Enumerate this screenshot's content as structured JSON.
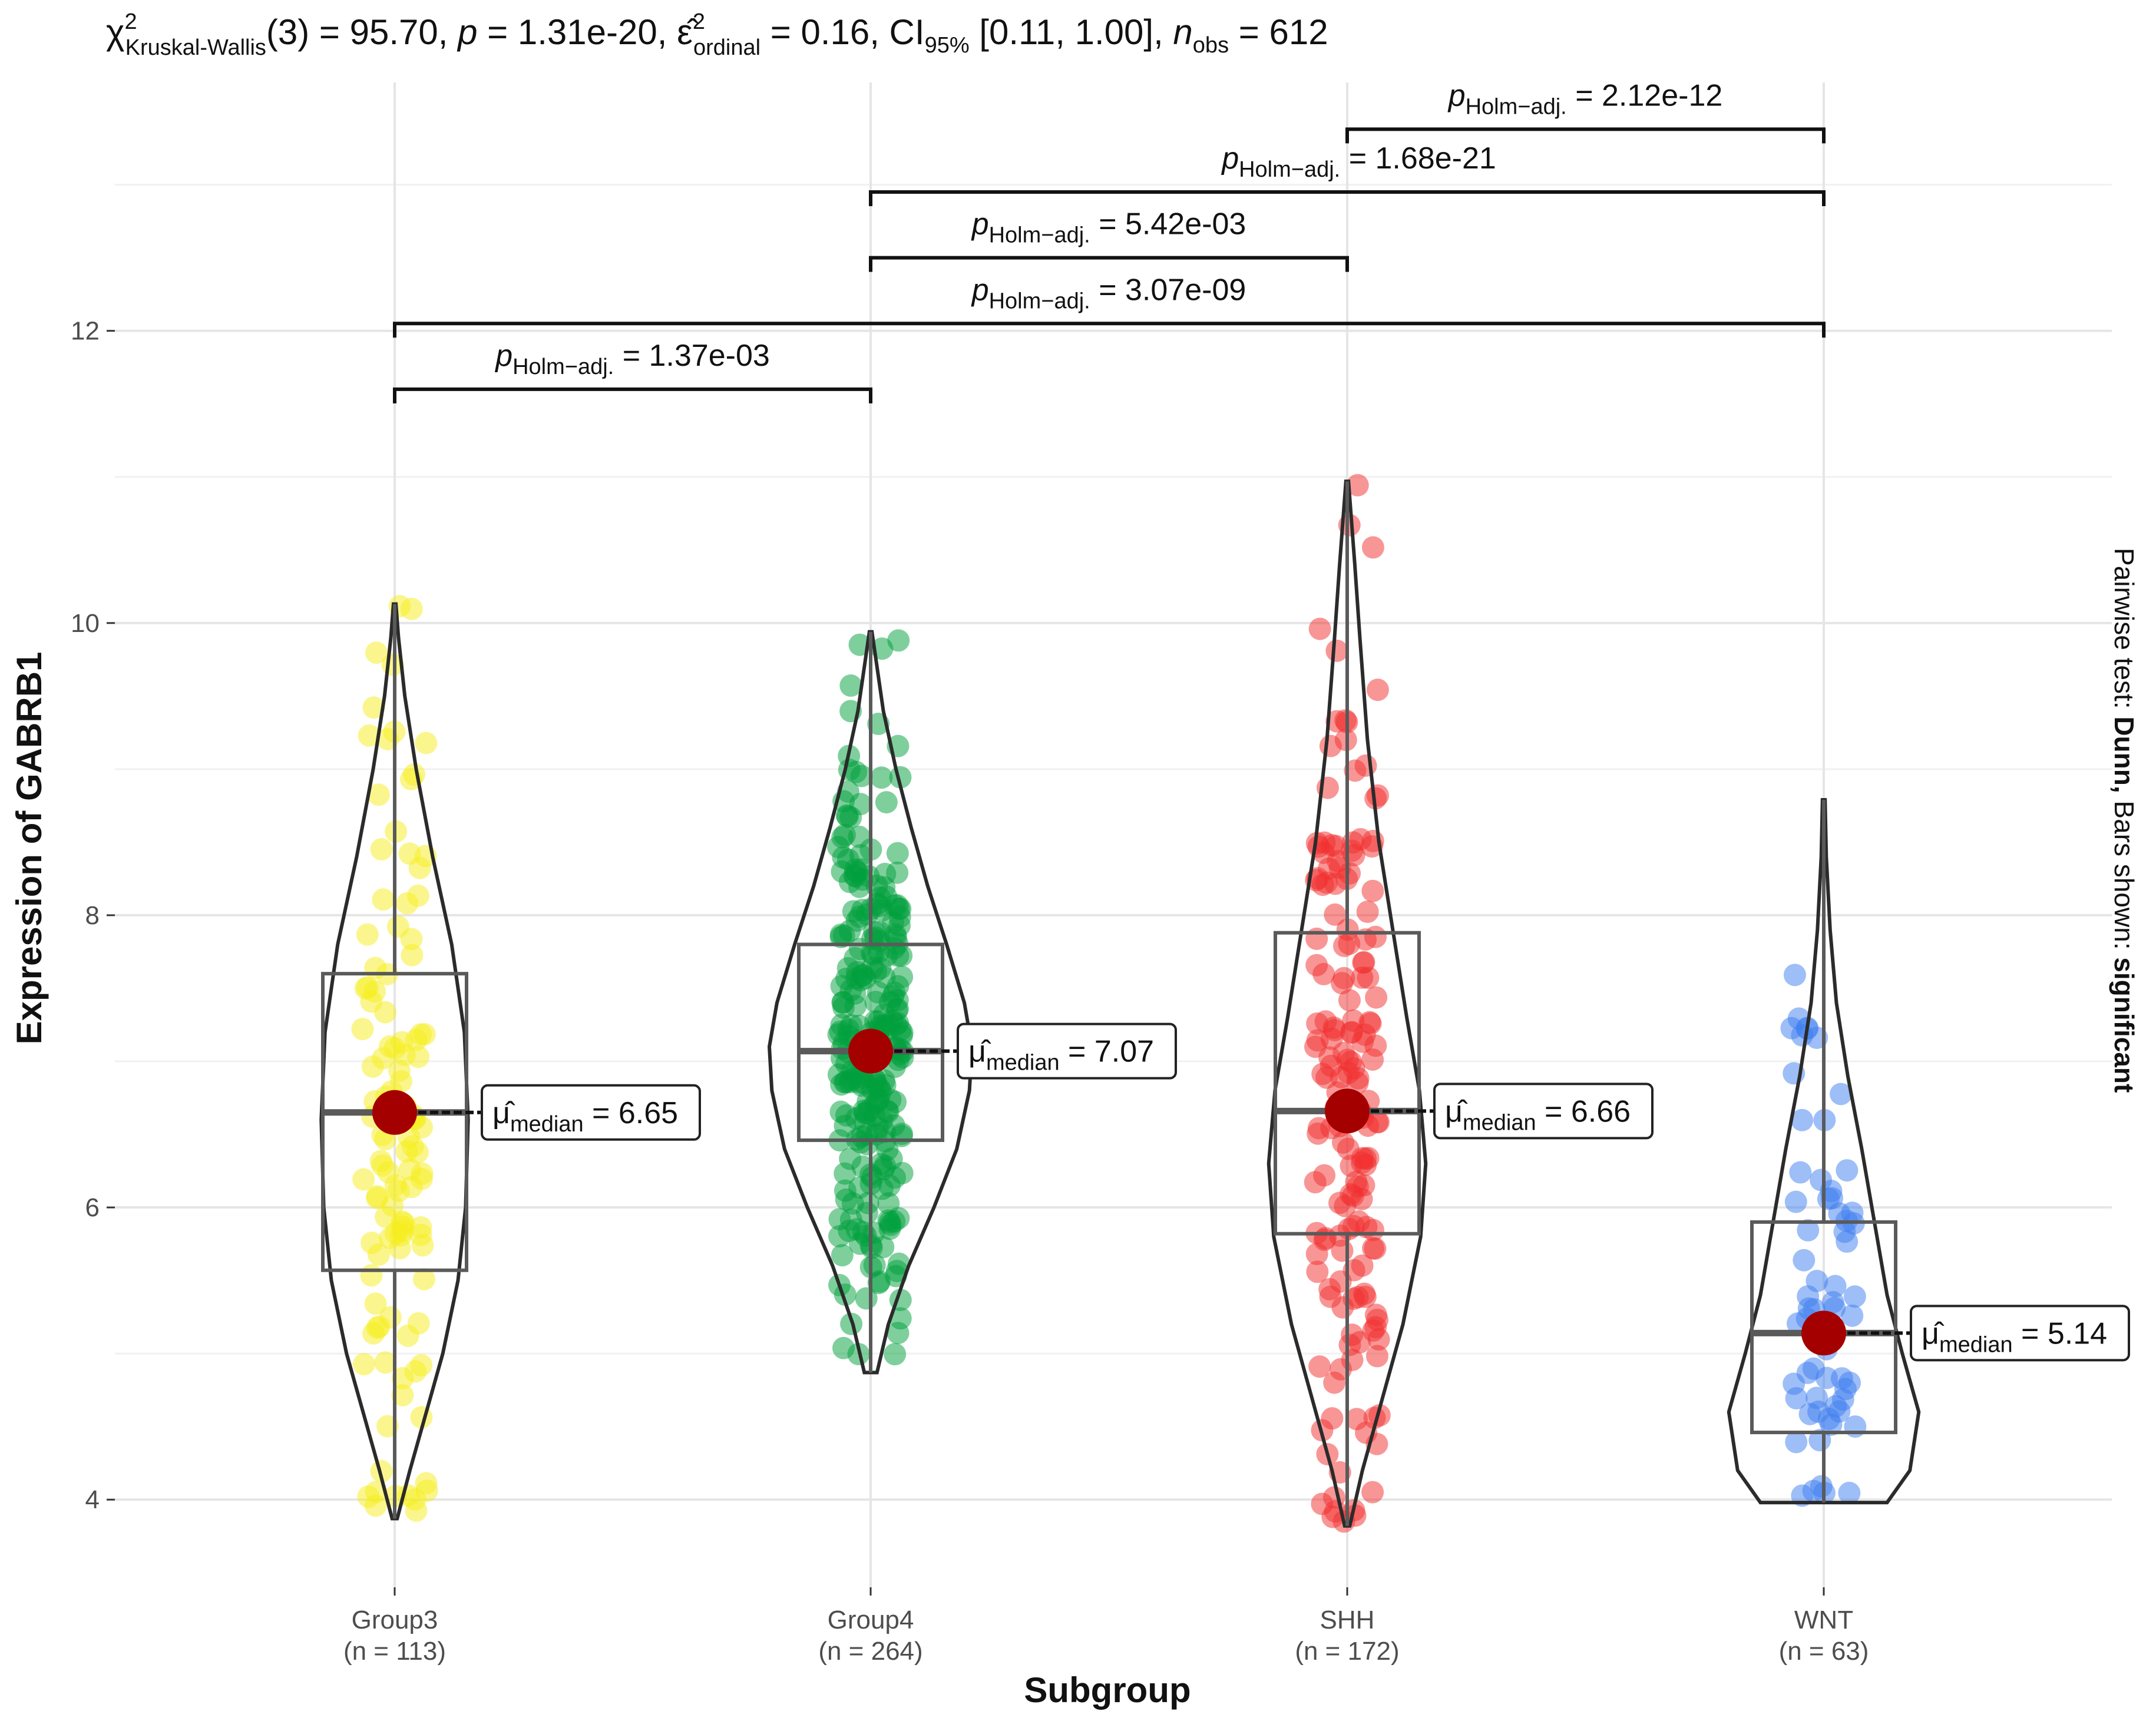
{
  "chart_data": {
    "type": "violin",
    "title": {
      "chi": "χ",
      "chi_sup": "2",
      "chi_sub": "Kruskal-Wallis",
      "part1": "(3) = 95.70, ",
      "p_symbol": "p",
      "part2": " = 1.31e-20, ",
      "eps": "ε̂",
      "eps_sup": "2",
      "eps_sub": "ordinal",
      "part3": " = 0.16, CI",
      "ci_sub": "95%",
      "part4": " [0.11, 1.00], ",
      "n_symbol": "n",
      "n_sub": "obs",
      "part5": " = 612"
    },
    "xlabel": "Subgroup",
    "ylabel": "Expression of GABRB1",
    "ylim": [
      3.4,
      13.7
    ],
    "yticks": [
      "4",
      "6",
      "8",
      "10",
      "12"
    ],
    "caption": {
      "prefix": "Pairwise test: ",
      "test": "Dunn,",
      "middle": " Bars shown: ",
      "shown": "significant"
    },
    "median_label": {
      "mu": "μ̂",
      "sub": "median",
      "eq": " = "
    },
    "groups": [
      {
        "name": "Group3",
        "n_label": "(n = 113)",
        "n": 113,
        "color": "#f5ee1c",
        "median": 6.65,
        "median_text": "6.65",
        "q1": 5.57,
        "q3": 7.6,
        "whisker_low": 3.87,
        "whisker_high": 10.13,
        "violin_min": 3.87,
        "violin_max": 10.13,
        "violin_profile": [
          [
            3.87,
            0.02
          ],
          [
            4.2,
            0.12
          ],
          [
            4.6,
            0.25
          ],
          [
            5.0,
            0.38
          ],
          [
            5.5,
            0.5
          ],
          [
            6.0,
            0.56
          ],
          [
            6.6,
            0.58
          ],
          [
            7.2,
            0.55
          ],
          [
            7.8,
            0.45
          ],
          [
            8.4,
            0.3
          ],
          [
            9.0,
            0.17
          ],
          [
            9.5,
            0.08
          ],
          [
            9.9,
            0.03
          ],
          [
            10.13,
            0.01
          ]
        ]
      },
      {
        "name": "Group4",
        "n_label": "(n = 264)",
        "n": 264,
        "color": "#00a03c",
        "median": 7.07,
        "median_text": "7.07",
        "q1": 6.46,
        "q3": 7.8,
        "whisker_low": 4.87,
        "whisker_high": 9.94,
        "violin_min": 4.87,
        "violin_max": 9.94,
        "violin_profile": [
          [
            4.87,
            0.05
          ],
          [
            5.2,
            0.14
          ],
          [
            5.6,
            0.3
          ],
          [
            6.0,
            0.5
          ],
          [
            6.4,
            0.68
          ],
          [
            6.8,
            0.78
          ],
          [
            7.1,
            0.8
          ],
          [
            7.4,
            0.74
          ],
          [
            7.8,
            0.6
          ],
          [
            8.2,
            0.45
          ],
          [
            8.6,
            0.32
          ],
          [
            9.0,
            0.2
          ],
          [
            9.4,
            0.1
          ],
          [
            9.7,
            0.05
          ],
          [
            9.94,
            0.01
          ]
        ]
      },
      {
        "name": "SHH",
        "n_label": "(n = 172)",
        "n": 172,
        "color": "#f22d2d",
        "median": 6.66,
        "median_text": "6.66",
        "q1": 5.82,
        "q3": 7.88,
        "whisker_low": 3.82,
        "whisker_high": 10.97,
        "violin_min": 3.82,
        "violin_max": 10.97,
        "violin_profile": [
          [
            3.82,
            0.02
          ],
          [
            4.2,
            0.12
          ],
          [
            4.7,
            0.28
          ],
          [
            5.2,
            0.44
          ],
          [
            5.8,
            0.58
          ],
          [
            6.3,
            0.62
          ],
          [
            6.8,
            0.57
          ],
          [
            7.3,
            0.47
          ],
          [
            7.9,
            0.36
          ],
          [
            8.5,
            0.25
          ],
          [
            9.2,
            0.16
          ],
          [
            9.9,
            0.1
          ],
          [
            10.4,
            0.06
          ],
          [
            10.97,
            0.01
          ]
        ]
      },
      {
        "name": "WNT",
        "n_label": "(n = 63)",
        "n": 63,
        "color": "#3d7df0",
        "median": 5.14,
        "median_text": "5.14",
        "q1": 4.46,
        "q3": 5.9,
        "whisker_low": 3.98,
        "whisker_high": 8.79,
        "violin_min": 3.98,
        "violin_max": 8.79,
        "violin_profile": [
          [
            3.98,
            0.5
          ],
          [
            4.2,
            0.68
          ],
          [
            4.6,
            0.75
          ],
          [
            5.0,
            0.62
          ],
          [
            5.4,
            0.5
          ],
          [
            5.9,
            0.4
          ],
          [
            6.4,
            0.3
          ],
          [
            6.9,
            0.19
          ],
          [
            7.4,
            0.1
          ],
          [
            7.9,
            0.05
          ],
          [
            8.4,
            0.02
          ],
          [
            8.79,
            0.01
          ]
        ]
      }
    ],
    "pairwise": [
      {
        "from": "Group3",
        "to": "Group4",
        "y": 11.6,
        "label": " = 1.37e-03"
      },
      {
        "from": "Group3",
        "to": "WNT",
        "y": 12.05,
        "label": " = 3.07e-09"
      },
      {
        "from": "Group4",
        "to": "SHH",
        "y": 12.5,
        "label": " = 5.42e-03"
      },
      {
        "from": "Group4",
        "to": "WNT",
        "y": 12.95,
        "label": " = 1.68e-21"
      },
      {
        "from": "SHH",
        "to": "WNT",
        "y": 13.38,
        "label": " = 2.12e-12"
      }
    ],
    "pairwise_label": {
      "p": "p",
      "sub": "Holm−adj."
    }
  }
}
